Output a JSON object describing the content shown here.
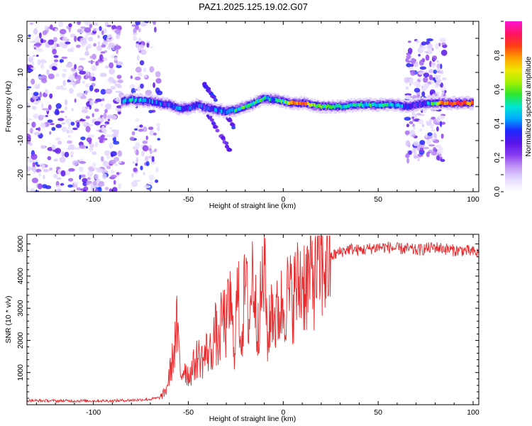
{
  "title": "PAZ1.2025.125.19.02.G07",
  "colors": {
    "snr_line": "#e8292c",
    "colormap": [
      "#ffffff",
      "#e6dcff",
      "#c39bf5",
      "#8a3df0",
      "#5a14e8",
      "#1e28ff",
      "#00a8ff",
      "#00e6d2",
      "#2ee62e",
      "#a6f000",
      "#f0e600",
      "#ffa000",
      "#ff3c14",
      "#ff1464",
      "#ff14d2"
    ]
  },
  "chart_data": [
    {
      "type": "heatmap",
      "title": "",
      "xlabel": "Height of straight line (km)",
      "ylabel": "Frequency (Hz)",
      "xlim": [
        -135,
        103
      ],
      "ylim": [
        -25,
        25
      ],
      "xticks": [
        -100,
        -50,
        0,
        50,
        100
      ],
      "yticks": [
        -20,
        -10,
        0,
        10,
        20
      ],
      "colorbar": {
        "label": "Normalized spectral amplitude",
        "range": [
          0,
          1
        ],
        "ticks": [
          0.0,
          0.2,
          0.4,
          0.6,
          0.8
        ]
      },
      "ridge": {
        "description_values": "dominant frequency track (Hz) vs height (km)",
        "x": [
          -85,
          -80,
          -75,
          -70,
          -65,
          -60,
          -55,
          -50,
          -45,
          -40,
          -35,
          -30,
          -25,
          -20,
          -15,
          -10,
          -5,
          0,
          5,
          10,
          15,
          20,
          30,
          40,
          50,
          60,
          65,
          70,
          75,
          80,
          85,
          90,
          95,
          100
        ],
        "freq": [
          1.5,
          2.0,
          1.8,
          1.5,
          1.0,
          0.5,
          -0.5,
          -0.5,
          0.5,
          -0.5,
          -1.0,
          -1.5,
          -1.0,
          0.0,
          1.0,
          2.5,
          2.0,
          1.5,
          1.0,
          1.0,
          0.5,
          0.0,
          0.0,
          0.5,
          0.5,
          0.5,
          0.0,
          0.5,
          1.0,
          1.0,
          1.0,
          1.0,
          1.0,
          1.0
        ],
        "amplitude": [
          0.35,
          0.45,
          0.4,
          0.4,
          0.35,
          0.3,
          0.35,
          0.3,
          0.35,
          0.3,
          0.4,
          0.45,
          0.5,
          0.55,
          0.5,
          0.5,
          0.45,
          0.55,
          0.75,
          0.85,
          0.65,
          0.55,
          0.5,
          0.5,
          0.5,
          0.45,
          0.4,
          0.3,
          0.35,
          0.6,
          0.85,
          0.9,
          0.85,
          0.8
        ]
      },
      "noise_regions_km": [
        [
          -135,
          -85
        ],
        [
          -80,
          -65
        ],
        [
          65,
          85
        ]
      ]
    },
    {
      "type": "line",
      "title": "",
      "xlabel": "Height of straight line (km)",
      "ylabel": "SNR (10 * v/v)",
      "xlim": [
        -135,
        103
      ],
      "ylim": [
        0,
        5300
      ],
      "xticks": [
        -100,
        -50,
        0,
        50,
        100
      ],
      "yticks": [
        1000,
        2000,
        3000,
        4000,
        5000
      ],
      "series": [
        {
          "x": [
            -135,
            -120,
            -100,
            -90,
            -80,
            -70,
            -65,
            -62,
            -60,
            -58,
            -56,
            -54,
            -52,
            -50,
            -48,
            -45,
            -42,
            -40,
            -38,
            -36,
            -34,
            -32,
            -30,
            -28,
            -26,
            -24,
            -22,
            -20,
            -18,
            -16,
            -14,
            -12,
            -10,
            -8,
            -6,
            -4,
            -2,
            0,
            2,
            4,
            6,
            8,
            10,
            12,
            14,
            16,
            18,
            20,
            22,
            25,
            30,
            35,
            40,
            45,
            50,
            55,
            60,
            65,
            70,
            75,
            80,
            85,
            90,
            95,
            100,
            103
          ],
          "values": [
            130,
            120,
            120,
            120,
            140,
            170,
            220,
            400,
            900,
            1500,
            2400,
            900,
            1200,
            900,
            1100,
            1500,
            1400,
            1700,
            1600,
            2300,
            1800,
            2800,
            2400,
            3300,
            1700,
            3500,
            2000,
            3800,
            2600,
            4300,
            2500,
            3100,
            4200,
            1900,
            3200,
            2600,
            3000,
            3100,
            3400,
            3300,
            3500,
            3700,
            3900,
            3800,
            4000,
            4100,
            4200,
            4350,
            4450,
            4600,
            4750,
            4850,
            4800,
            4850,
            4900,
            4900,
            4850,
            4850,
            4800,
            4850,
            4900,
            4850,
            4800,
            4800,
            4750,
            4700
          ]
        }
      ]
    }
  ]
}
